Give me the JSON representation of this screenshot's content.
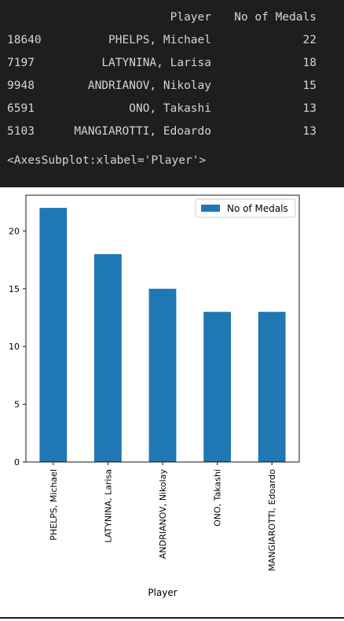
{
  "output": {
    "header": {
      "player": "Player",
      "medals": "No of Medals"
    },
    "rows": [
      {
        "index": "18640",
        "player": "PHELPS, Michael",
        "medals": "22"
      },
      {
        "index": "7197",
        "player": "LATYNINA, Larisa",
        "medals": "18"
      },
      {
        "index": "9948",
        "player": "ANDRIANOV, Nikolay",
        "medals": "15"
      },
      {
        "index": "6591",
        "player": "ONO, Takashi",
        "medals": "13"
      },
      {
        "index": "5103",
        "player": "MANGIAROTTI, Edoardo",
        "medals": "13"
      }
    ],
    "repr": "<AxesSubplot:xlabel='Player'>"
  },
  "chart_data": {
    "type": "bar",
    "categories": [
      "PHELPS, Michael",
      "LATYNINA, Larisa",
      "ANDRIANOV, Nikolay",
      "ONO, Takashi",
      "MANGIAROTTI, Edoardo"
    ],
    "series": [
      {
        "name": "No of Medals",
        "values": [
          22,
          18,
          15,
          13,
          13
        ]
      }
    ],
    "xlabel": "Player",
    "ylabel": "",
    "ylim": [
      0,
      23.1
    ],
    "yticks": [
      0,
      5,
      10,
      15,
      20
    ],
    "legend": "top-right",
    "grid": false,
    "bar_color": "#1f77b4"
  }
}
